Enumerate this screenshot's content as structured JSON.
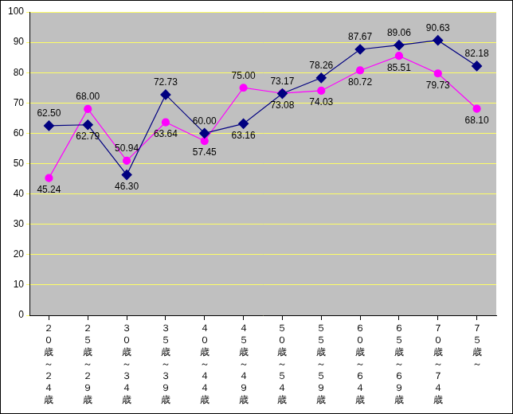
{
  "chart_data": {
    "type": "line",
    "categories": [
      "２０歳～２４歳",
      "２５歳～２９歳",
      "３０歳～３４歳",
      "３５歳～３９歳",
      "４０歳～４４歳",
      "４５歳～４９歳",
      "５０歳～５４歳",
      "５５歳～５９歳",
      "６０歳～６４歳",
      "６５歳～６９歳",
      "７０歳～７４歳",
      "７５歳～"
    ],
    "series": [
      {
        "color": "#000080",
        "marker": "diamond",
        "values": [
          62.5,
          62.79,
          46.3,
          72.73,
          60.0,
          63.16,
          73.08,
          78.26,
          87.67,
          89.06,
          90.63,
          82.18
        ]
      },
      {
        "color": "#ff00ff",
        "marker": "circle",
        "values": [
          45.24,
          68.0,
          50.94,
          63.64,
          57.45,
          75.0,
          73.17,
          74.03,
          80.72,
          85.51,
          79.73,
          68.1
        ]
      }
    ],
    "ylim": [
      0,
      100
    ],
    "yticks": [
      0,
      10,
      20,
      30,
      40,
      50,
      60,
      70,
      80,
      90,
      100
    ],
    "grid": true,
    "data_labels": true
  }
}
